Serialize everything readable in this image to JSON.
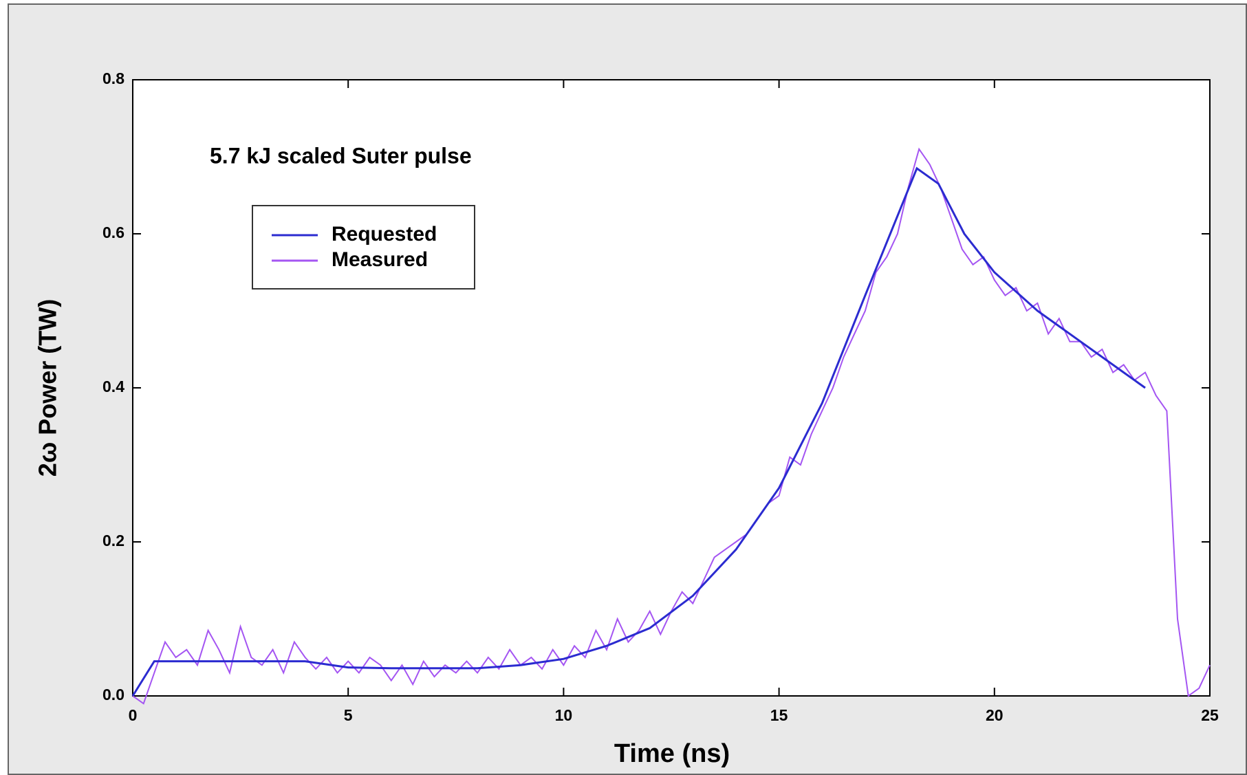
{
  "chart_data": {
    "type": "line",
    "annotation": "5.7 kJ scaled Suter pulse",
    "xlabel": "Time (ns)",
    "ylabel": "2ω Power (TW)",
    "xlim": [
      0,
      25
    ],
    "ylim": [
      0,
      0.8
    ],
    "xticks": [
      0,
      5,
      10,
      15,
      20,
      25
    ],
    "yticks": [
      {
        "value": 0,
        "label": "0.0"
      },
      0.2,
      0.4,
      0.6,
      0.8
    ],
    "series": [
      {
        "name": "Requested",
        "color": "#2b2bd0",
        "x": [
          0,
          0.5,
          4,
          5,
          6,
          8,
          9,
          10,
          11,
          12,
          13,
          14,
          15,
          16,
          17,
          18.2,
          18.7,
          19.3,
          20,
          21,
          22,
          23,
          23.5
        ],
        "values": [
          0,
          0.045,
          0.045,
          0.037,
          0.036,
          0.036,
          0.04,
          0.048,
          0.065,
          0.088,
          0.13,
          0.19,
          0.27,
          0.38,
          0.52,
          0.685,
          0.665,
          0.6,
          0.55,
          0.5,
          0.46,
          0.42,
          0.4
        ]
      },
      {
        "name": "Measured",
        "color": "#a455f2",
        "x": [
          0,
          0.25,
          0.5,
          0.75,
          1,
          1.25,
          1.5,
          1.75,
          2,
          2.25,
          2.5,
          2.75,
          3,
          3.25,
          3.5,
          3.75,
          4,
          4.25,
          4.5,
          4.75,
          5,
          5.25,
          5.5,
          5.75,
          6,
          6.25,
          6.5,
          6.75,
          7,
          7.25,
          7.5,
          7.75,
          8,
          8.25,
          8.5,
          8.75,
          9,
          9.25,
          9.5,
          9.75,
          10,
          10.25,
          10.5,
          10.75,
          11,
          11.25,
          11.5,
          11.75,
          12,
          12.25,
          12.5,
          12.75,
          13,
          13.25,
          13.5,
          13.75,
          14,
          14.25,
          14.5,
          14.75,
          15,
          15.25,
          15.5,
          15.75,
          16,
          16.25,
          16.5,
          16.75,
          17,
          17.25,
          17.5,
          17.75,
          18,
          18.25,
          18.5,
          18.75,
          19,
          19.25,
          19.5,
          19.75,
          20,
          20.25,
          20.5,
          20.75,
          21,
          21.25,
          21.5,
          21.75,
          22,
          22.25,
          22.5,
          22.75,
          23,
          23.25,
          23.5,
          23.75,
          24,
          24.25,
          24.5,
          24.75,
          25
        ],
        "values": [
          0,
          -0.01,
          0.03,
          0.07,
          0.05,
          0.06,
          0.04,
          0.085,
          0.06,
          0.03,
          0.09,
          0.05,
          0.04,
          0.06,
          0.03,
          0.07,
          0.05,
          0.035,
          0.05,
          0.03,
          0.045,
          0.03,
          0.05,
          0.04,
          0.02,
          0.04,
          0.015,
          0.045,
          0.025,
          0.04,
          0.03,
          0.045,
          0.03,
          0.05,
          0.035,
          0.06,
          0.04,
          0.05,
          0.035,
          0.06,
          0.04,
          0.065,
          0.05,
          0.085,
          0.06,
          0.1,
          0.07,
          0.085,
          0.11,
          0.08,
          0.11,
          0.135,
          0.12,
          0.15,
          0.18,
          0.19,
          0.2,
          0.21,
          0.23,
          0.25,
          0.26,
          0.31,
          0.3,
          0.34,
          0.37,
          0.4,
          0.44,
          0.47,
          0.5,
          0.55,
          0.57,
          0.6,
          0.66,
          0.71,
          0.69,
          0.66,
          0.62,
          0.58,
          0.56,
          0.57,
          0.54,
          0.52,
          0.53,
          0.5,
          0.51,
          0.47,
          0.49,
          0.46,
          0.46,
          0.44,
          0.45,
          0.42,
          0.43,
          0.41,
          0.42,
          0.39,
          0.37,
          0.1,
          0,
          0.01,
          0.04
        ]
      }
    ]
  }
}
